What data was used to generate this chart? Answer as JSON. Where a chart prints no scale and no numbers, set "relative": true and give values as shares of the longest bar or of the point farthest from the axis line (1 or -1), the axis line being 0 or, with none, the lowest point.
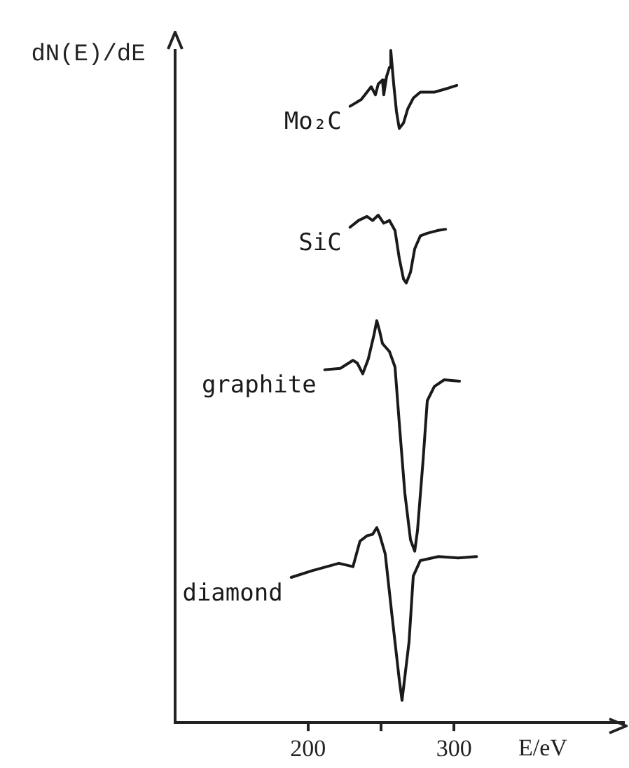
{
  "chart_data": {
    "type": "line",
    "ylabel": "dN(E)/dE",
    "xlabel": "E/eV",
    "relative": true,
    "grid": false,
    "legend": false,
    "marker": "none",
    "line_style": "solid",
    "xlim": [
      109,
      416
    ],
    "xticks": [
      200,
      {
        "value": 250,
        "label": null
      },
      300
    ],
    "series": [
      {
        "name": "Mo₂C",
        "color": "#1a1a1a",
        "x": [
          228.8,
          236.5,
          240.4,
          243.3,
          246.2,
          248.1,
          251,
          251.9,
          253.8,
          255.8,
          256.7,
          258.7,
          260.6,
          262.5,
          265.4,
          268.3,
          272.1,
          276.9,
          286.5,
          296.2,
          301.9
        ],
        "values": [
          0.917,
          0.927,
          0.938,
          0.946,
          0.934,
          0.95,
          0.956,
          0.934,
          0.961,
          0.975,
          1.0,
          0.95,
          0.909,
          0.884,
          0.892,
          0.913,
          0.929,
          0.938,
          0.938,
          0.944,
          0.948
        ]
      },
      {
        "name": "SiC",
        "color": "#1a1a1a",
        "x": [
          228.8,
          234.6,
          240.4,
          244.2,
          248.1,
          251.9,
          255.8,
          259.6,
          262.5,
          265.4,
          267.3,
          270.2,
          273.1,
          276.9,
          281.7,
          288.5,
          294.2
        ],
        "values": [
          0.737,
          0.747,
          0.753,
          0.747,
          0.755,
          0.743,
          0.747,
          0.732,
          0.691,
          0.66,
          0.654,
          0.67,
          0.705,
          0.724,
          0.728,
          0.732,
          0.734
        ]
      },
      {
        "name": "graphite",
        "color": "#1a1a1a",
        "x": [
          211.5,
          222.1,
          230.8,
          233.7,
          237.5,
          241.3,
          245.2,
          247.1,
          249,
          251,
          255.8,
          259.6,
          262.5,
          266.3,
          270.2,
          273.1,
          275,
          278.8,
          281.7,
          286.5,
          293.3,
          303.8
        ],
        "values": [
          0.525,
          0.527,
          0.539,
          0.535,
          0.519,
          0.541,
          0.577,
          0.598,
          0.583,
          0.564,
          0.552,
          0.529,
          0.446,
          0.342,
          0.272,
          0.255,
          0.286,
          0.39,
          0.479,
          0.5,
          0.51,
          0.508
        ]
      },
      {
        "name": "diamond",
        "color": "#1a1a1a",
        "x": [
          188.5,
          202.9,
          221.2,
          230.8,
          235.6,
          240.4,
          244.2,
          247.1,
          249,
          252.9,
          257.7,
          262.5,
          264.4,
          269.2,
          272.1,
          276.9,
          289.4,
          302.9,
          315.4
        ],
        "values": [
          0.216,
          0.226,
          0.237,
          0.232,
          0.27,
          0.278,
          0.28,
          0.29,
          0.28,
          0.251,
          0.156,
          0.064,
          0.033,
          0.12,
          0.218,
          0.241,
          0.247,
          0.245,
          0.247
        ]
      }
    ]
  }
}
